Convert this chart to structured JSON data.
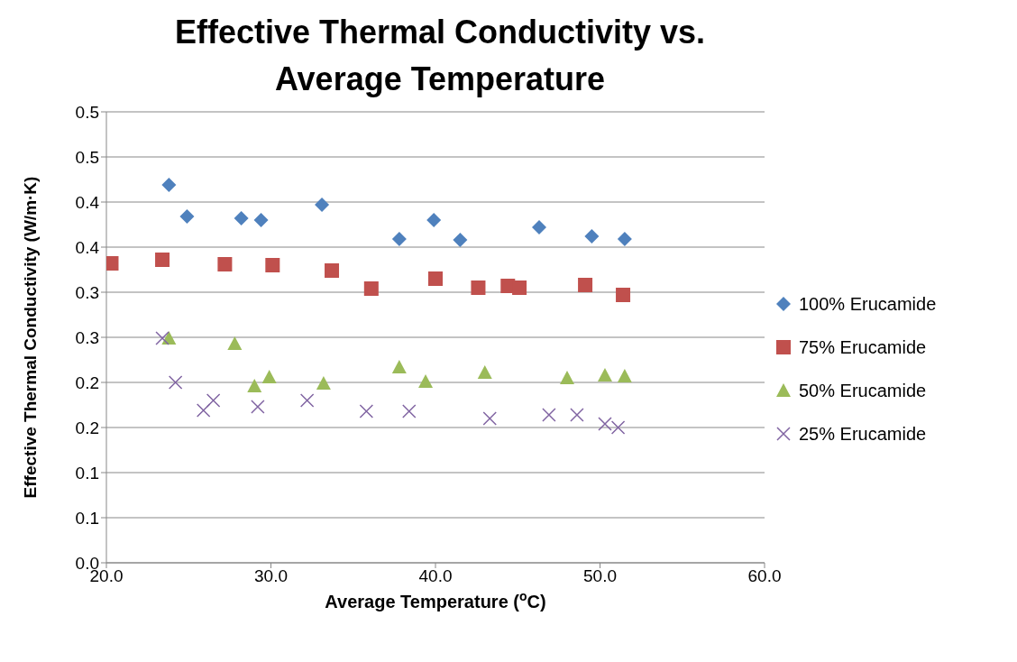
{
  "chart_data": {
    "type": "scatter",
    "title": "Effective Thermal Conductivity vs. Average Temperature",
    "xlabel": "Average Temperature ($^{o}$C)",
    "ylabel": "Effective Thermal Conductivity (W/m·K)",
    "xlim": [
      20,
      60
    ],
    "xticks": [
      {
        "value": 20,
        "label": "20.0"
      },
      {
        "value": 30,
        "label": "30.0"
      },
      {
        "value": 40,
        "label": "40.0"
      },
      {
        "value": 50,
        "label": "50.0"
      },
      {
        "value": 60,
        "label": "60.0"
      }
    ],
    "ylim": [
      0,
      0.5
    ],
    "yticks": [
      {
        "value": 0,
        "label": "0.0"
      },
      {
        "value": 0.05,
        "label": "0.1"
      },
      {
        "value": 0.1,
        "label": "0.1"
      },
      {
        "value": 0.15,
        "label": "0.2"
      },
      {
        "value": 0.2,
        "label": "0.2"
      },
      {
        "value": 0.25,
        "label": "0.3"
      },
      {
        "value": 0.3,
        "label": "0.3"
      },
      {
        "value": 0.35,
        "label": "0.4"
      },
      {
        "value": 0.4,
        "label": "0.4"
      },
      {
        "value": 0.45,
        "label": "0.5"
      },
      {
        "value": 0.5,
        "label": "0.5"
      }
    ],
    "grid": "y",
    "legend": "right",
    "series": [
      {
        "name": "100% Erucamide",
        "color": "#4f81bd",
        "marker": "diamond",
        "x": [
          23.8,
          24.9,
          28.2,
          29.4,
          33.1,
          37.8,
          39.9,
          41.5,
          46.3,
          49.5,
          51.5
        ],
        "values": [
          0.419,
          0.384,
          0.382,
          0.38,
          0.397,
          0.359,
          0.38,
          0.358,
          0.372,
          0.362,
          0.359
        ]
      },
      {
        "name": "75% Erucamide",
        "color": "#c0504d",
        "marker": "square",
        "x": [
          20.3,
          23.4,
          27.2,
          30.1,
          33.7,
          36.1,
          40.0,
          42.6,
          44.4,
          45.1,
          49.1,
          51.4
        ],
        "values": [
          0.332,
          0.336,
          0.331,
          0.33,
          0.324,
          0.304,
          0.315,
          0.305,
          0.307,
          0.305,
          0.308,
          0.297
        ]
      },
      {
        "name": "50% Erucamide",
        "color": "#9bbb59",
        "marker": "triangle",
        "x": [
          23.8,
          27.8,
          29.0,
          29.9,
          33.2,
          37.8,
          39.4,
          43.0,
          48.0,
          50.3,
          51.5
        ],
        "values": [
          0.249,
          0.243,
          0.196,
          0.206,
          0.199,
          0.217,
          0.201,
          0.211,
          0.205,
          0.208,
          0.207
        ]
      },
      {
        "name": "25% Erucamide",
        "color": "#8064a2",
        "marker": "cross",
        "x": [
          23.4,
          24.2,
          25.9,
          26.5,
          29.2,
          32.2,
          35.8,
          38.4,
          43.3,
          46.9,
          48.6,
          50.3,
          51.1
        ],
        "values": [
          0.249,
          0.2,
          0.169,
          0.18,
          0.173,
          0.18,
          0.168,
          0.168,
          0.16,
          0.164,
          0.164,
          0.154,
          0.15
        ]
      }
    ]
  }
}
